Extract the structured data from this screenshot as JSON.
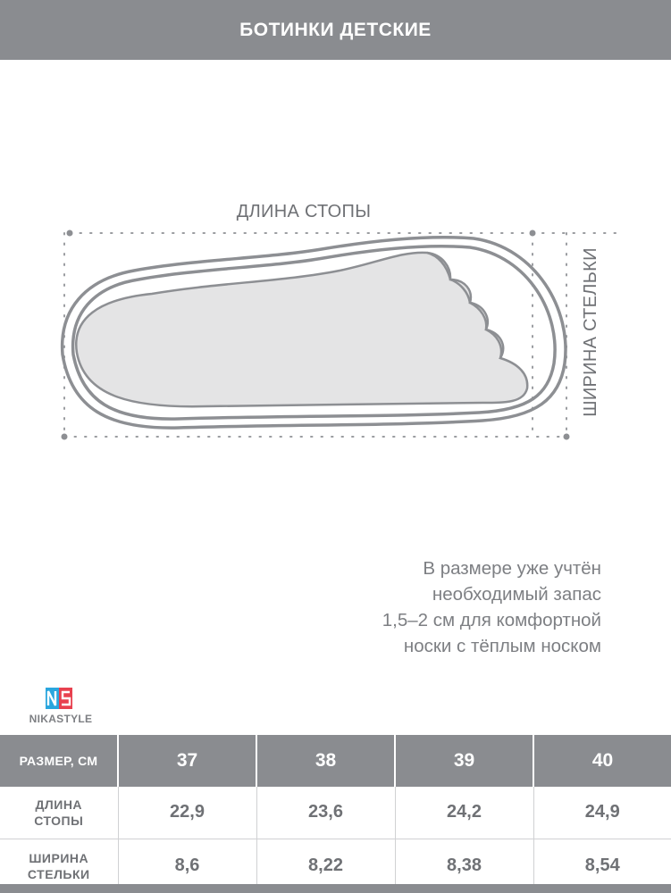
{
  "header": {
    "title": "БОТИНКИ ДЕТСКИЕ"
  },
  "diagram": {
    "length_label": "ДЛИНА СТОПЫ",
    "width_label": "ШИРИНА СТЕЛЬКИ"
  },
  "note": {
    "lines": [
      "В размере уже учтён",
      "необходимый запас",
      "1,5–2 см для комфортной",
      "носки с тёплым носком"
    ]
  },
  "brand": {
    "name": "NIKASTYLE",
    "logo_text": "NS",
    "colors": {
      "blue": "#2aa6de",
      "red": "#e8414f"
    }
  },
  "table": {
    "header_label": "РАЗМЕР, СМ",
    "sizes": [
      "37",
      "38",
      "39",
      "40"
    ],
    "rows": [
      {
        "label_line1": "ДЛИНА",
        "label_line2": "СТОПЫ",
        "values": [
          "22,9",
          "23,6",
          "24,2",
          "24,9"
        ]
      },
      {
        "label_line1": "ШИРИНА",
        "label_line2": "СТЕЛЬКИ",
        "values": [
          "8,6",
          "8,22",
          "8,38",
          "8,54"
        ]
      }
    ]
  },
  "colors": {
    "header_bg": "#8a8c90",
    "text": "#7d7f83",
    "foot_fill": "#e4e4e5",
    "outline": "#8d8f93"
  }
}
